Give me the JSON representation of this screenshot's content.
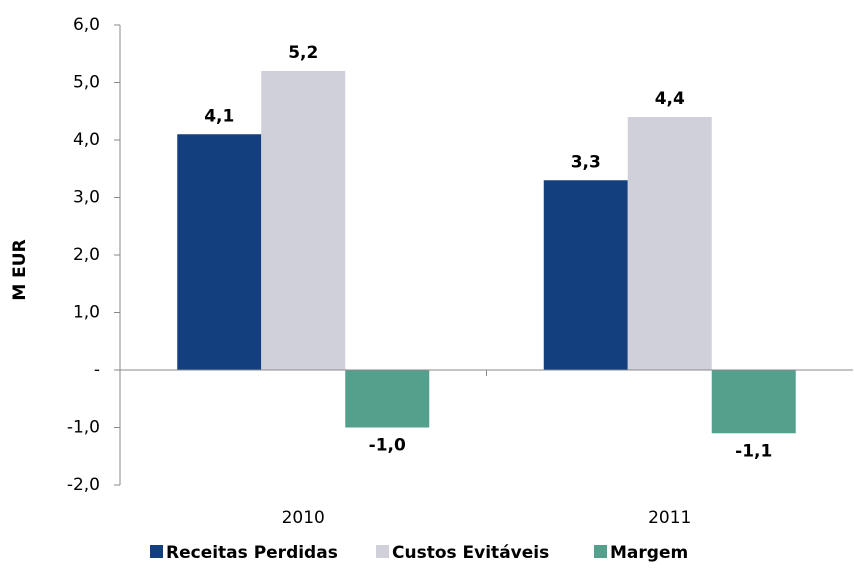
{
  "chart_data": {
    "type": "bar",
    "y_label": "M EUR",
    "categories": [
      "2010",
      "2011"
    ],
    "series": [
      {
        "name": "Receitas Perdidas",
        "color": "#143f7f",
        "values": [
          4.1,
          3.3
        ],
        "value_labels": [
          "4,1",
          "3,3"
        ]
      },
      {
        "name": "Custos Evitáveis",
        "color": "#d0d0da",
        "values": [
          5.2,
          4.4
        ],
        "value_labels": [
          "5,2",
          "4,4"
        ]
      },
      {
        "name": "Margem",
        "color": "#55a08c",
        "values": [
          -1.0,
          -1.1
        ],
        "value_labels": [
          "-1,0",
          "-1,1"
        ]
      }
    ],
    "ylim": [
      -2,
      6
    ],
    "yticks": [
      {
        "value": -2,
        "label": "-2,0"
      },
      {
        "value": -1,
        "label": "-1,0"
      },
      {
        "value": 0,
        "label": "-"
      },
      {
        "value": 1,
        "label": "1,0"
      },
      {
        "value": 2,
        "label": "2,0"
      },
      {
        "value": 3,
        "label": "3,0"
      },
      {
        "value": 4,
        "label": "4,0"
      },
      {
        "value": 5,
        "label": "5,0"
      },
      {
        "value": 6,
        "label": "6,0"
      }
    ],
    "grid": false,
    "legend": "bottom"
  }
}
